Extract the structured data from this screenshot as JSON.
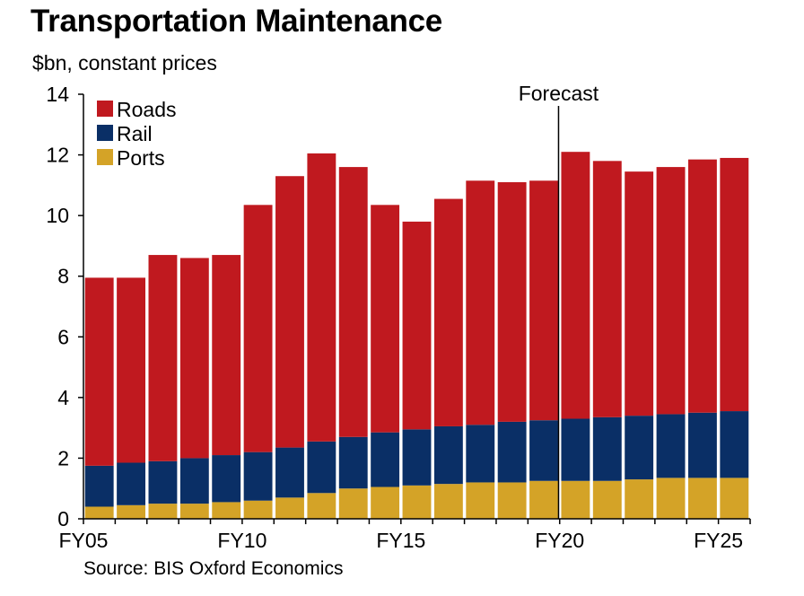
{
  "title": "Transportation Maintenance",
  "subtitle": "$bn, constant prices",
  "source": "Source: BIS Oxford Economics",
  "chart_data": {
    "type": "bar",
    "stacked": true,
    "categories": [
      "FY05",
      "FY06",
      "FY07",
      "FY08",
      "FY09",
      "FY10",
      "FY11",
      "FY12",
      "FY13",
      "FY14",
      "FY15",
      "FY16",
      "FY17",
      "FY18",
      "FY19",
      "FY20",
      "FY21",
      "FY22",
      "FY23",
      "FY24",
      "FY25"
    ],
    "tick_labels": [
      "FY05",
      "FY10",
      "FY15",
      "FY20",
      "FY25"
    ],
    "series": [
      {
        "name": "Ports",
        "color": "#D4A327",
        "values": [
          0.4,
          0.45,
          0.5,
          0.5,
          0.55,
          0.6,
          0.7,
          0.85,
          1.0,
          1.05,
          1.1,
          1.15,
          1.2,
          1.2,
          1.25,
          1.25,
          1.25,
          1.3,
          1.35,
          1.35,
          1.35
        ]
      },
      {
        "name": "Rail",
        "color": "#0A2F66",
        "values": [
          1.35,
          1.4,
          1.4,
          1.5,
          1.55,
          1.6,
          1.65,
          1.7,
          1.7,
          1.8,
          1.85,
          1.9,
          1.9,
          2.0,
          2.0,
          2.05,
          2.1,
          2.1,
          2.1,
          2.15,
          2.2
        ]
      },
      {
        "name": "Roads",
        "color": "#C0191F",
        "values": [
          6.2,
          6.1,
          6.8,
          6.6,
          6.6,
          8.15,
          8.95,
          9.5,
          8.9,
          7.5,
          6.85,
          7.5,
          8.05,
          7.9,
          7.9,
          8.8,
          8.45,
          8.05,
          8.15,
          8.35,
          8.35
        ]
      }
    ],
    "legend_order": [
      "Roads",
      "Rail",
      "Ports"
    ],
    "legend_position": "top-left",
    "ylim": [
      0,
      14
    ],
    "yticks": [
      0,
      2,
      4,
      6,
      8,
      10,
      12,
      14
    ],
    "annotation": {
      "label": "Forecast",
      "after_category": "FY19"
    },
    "grid": false
  }
}
